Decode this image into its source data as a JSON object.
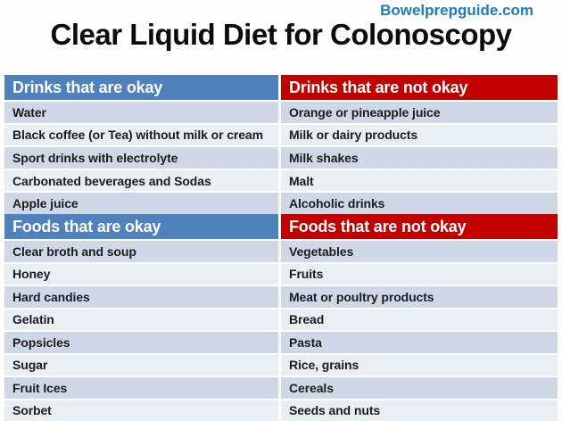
{
  "page": {
    "site": "Bowelprepguide.com",
    "title": "Clear Liquid Diet for Colonoscopy"
  },
  "colors": {
    "site_blue": "#1f7bc0",
    "header_blue": "#4f81bd",
    "header_red": "#c00000",
    "row_dark": "#d0d8e8",
    "row_light": "#e9edf4"
  },
  "table": {
    "sections": [
      {
        "okay_header": "Drinks that are okay",
        "not_okay_header": "Drinks that are not okay",
        "rows": [
          {
            "okay": "Water",
            "not_okay": "Orange or pineapple juice"
          },
          {
            "okay": "Black coffee (or Tea) without milk or cream",
            "not_okay": "Milk or dairy products"
          },
          {
            "okay": "Sport drinks with electrolyte",
            "not_okay": "Milk shakes"
          },
          {
            "okay": "Carbonated beverages and Sodas",
            "not_okay": "Malt"
          },
          {
            "okay": "Apple juice",
            "not_okay": "Alcoholic drinks"
          }
        ]
      },
      {
        "okay_header": "Foods that are okay",
        "not_okay_header": "Foods that are not okay",
        "rows": [
          {
            "okay": "Clear broth and soup",
            "not_okay": "Vegetables"
          },
          {
            "okay": "Honey",
            "not_okay": "Fruits"
          },
          {
            "okay": "Hard candies",
            "not_okay": "Meat or poultry products"
          },
          {
            "okay": "Gelatin",
            "not_okay": "Bread"
          },
          {
            "okay": "Popsicles",
            "not_okay": "Pasta"
          },
          {
            "okay": "Sugar",
            "not_okay": "Rice, grains"
          },
          {
            "okay": "Fruit Ices",
            "not_okay": "Cereals"
          },
          {
            "okay": "Sorbet",
            "not_okay": "Seeds and nuts"
          }
        ]
      }
    ]
  }
}
